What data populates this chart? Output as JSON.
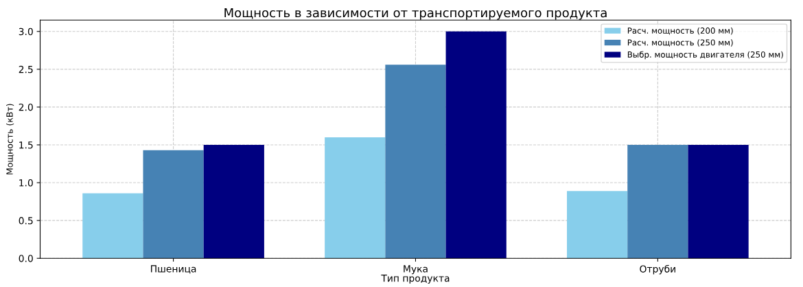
{
  "chart_data": {
    "type": "bar",
    "title": "Мощность в зависимости от транспортируемого продукта",
    "xlabel": "Тип продукта",
    "ylabel": "Мощность (кВт)",
    "categories": [
      "Пшеница",
      "Мука",
      "Отруби"
    ],
    "series": [
      {
        "name": "Расч. мощность (200 мм)",
        "color": "#87ceeb",
        "values": [
          0.86,
          1.6,
          0.89
        ]
      },
      {
        "name": "Расч. мощность (250 мм)",
        "color": "#4682b4",
        "values": [
          1.43,
          2.56,
          1.5
        ]
      },
      {
        "name": "Выбр. мощность двигателя (250 мм)",
        "color": "#000080",
        "values": [
          1.5,
          3.0,
          1.5
        ]
      }
    ],
    "ylim": [
      0,
      3.15
    ],
    "yticks": [
      {
        "value": 0,
        "label": "0.0"
      },
      {
        "value": 0.5,
        "label": "0.5"
      },
      {
        "value": 1,
        "label": "1.0"
      },
      {
        "value": 1.5,
        "label": "1.5"
      },
      {
        "value": 2,
        "label": "2.0"
      },
      {
        "value": 2.5,
        "label": "2.5"
      },
      {
        "value": 3,
        "label": "3.0"
      }
    ],
    "grid": true,
    "legend": "top right"
  }
}
